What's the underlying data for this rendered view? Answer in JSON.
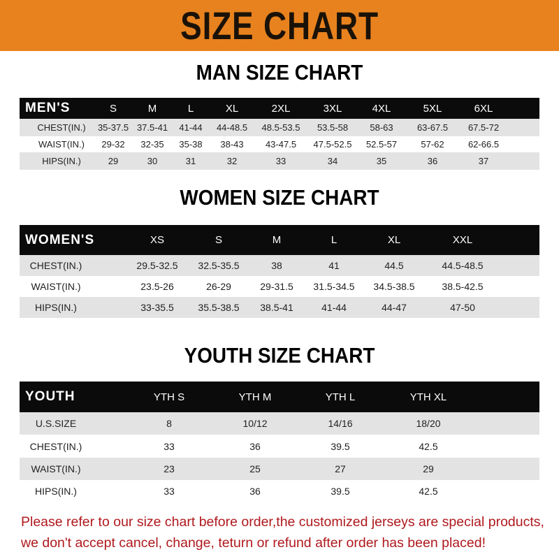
{
  "title": "SIZE CHART",
  "colors": {
    "banner": "#e8821e",
    "note": "#b0191e"
  },
  "men": {
    "title": "MAN SIZE CHART",
    "header": [
      "MEN'S",
      "S",
      "M",
      "L",
      "XL",
      "2XL",
      "3XL",
      "4XL",
      "5XL",
      "6XL"
    ],
    "rows": [
      [
        "CHEST(IN.)",
        "35-37.5",
        "37.5-41",
        "41-44",
        "44-48.5",
        "48.5-53.5",
        "53.5-58",
        "58-63",
        "63-67.5",
        "67.5-72"
      ],
      [
        "WAIST(IN.)",
        "29-32",
        "32-35",
        "35-38",
        "38-43",
        "43-47.5",
        "47.5-52.5",
        "52.5-57",
        "57-62",
        "62-66.5"
      ],
      [
        "HIPS(IN.)",
        "29",
        "30",
        "31",
        "32",
        "33",
        "34",
        "35",
        "36",
        "37"
      ]
    ]
  },
  "women": {
    "title": "WOMEN SIZE CHART",
    "header": [
      "WOMEN'S",
      "XS",
      "S",
      "M",
      "L",
      "XL",
      "XXL"
    ],
    "rows": [
      [
        "CHEST(IN.)",
        "29.5-32.5",
        "32.5-35.5",
        "38",
        "41",
        "44.5",
        "44.5-48.5"
      ],
      [
        "WAIST(IN.)",
        "23.5-26",
        "26-29",
        "29-31.5",
        "31.5-34.5",
        "34.5-38.5",
        "38.5-42.5"
      ],
      [
        "HIPS(IN.)",
        "33-35.5",
        "35.5-38.5",
        "38.5-41",
        "41-44",
        "44-47",
        "47-50"
      ]
    ]
  },
  "youth": {
    "title": "YOUTH SIZE CHART",
    "header": [
      "YOUTH",
      "YTH S",
      "YTH M",
      "YTH L",
      "YTH XL"
    ],
    "rows": [
      [
        "U.S.SIZE",
        "8",
        "10/12",
        "14/16",
        "18/20"
      ],
      [
        "CHEST(IN.)",
        "33",
        "36",
        "39.5",
        "42.5"
      ],
      [
        "WAIST(IN.)",
        "23",
        "25",
        "27",
        "29"
      ],
      [
        "HIPS(IN.)",
        "33",
        "36",
        "39.5",
        "42.5"
      ]
    ]
  },
  "note": [
    "Please refer to our size chart before order,the customized jerseys are special products,",
    "we don't accept cancel, change, teturn or refund after order has been placed!"
  ]
}
